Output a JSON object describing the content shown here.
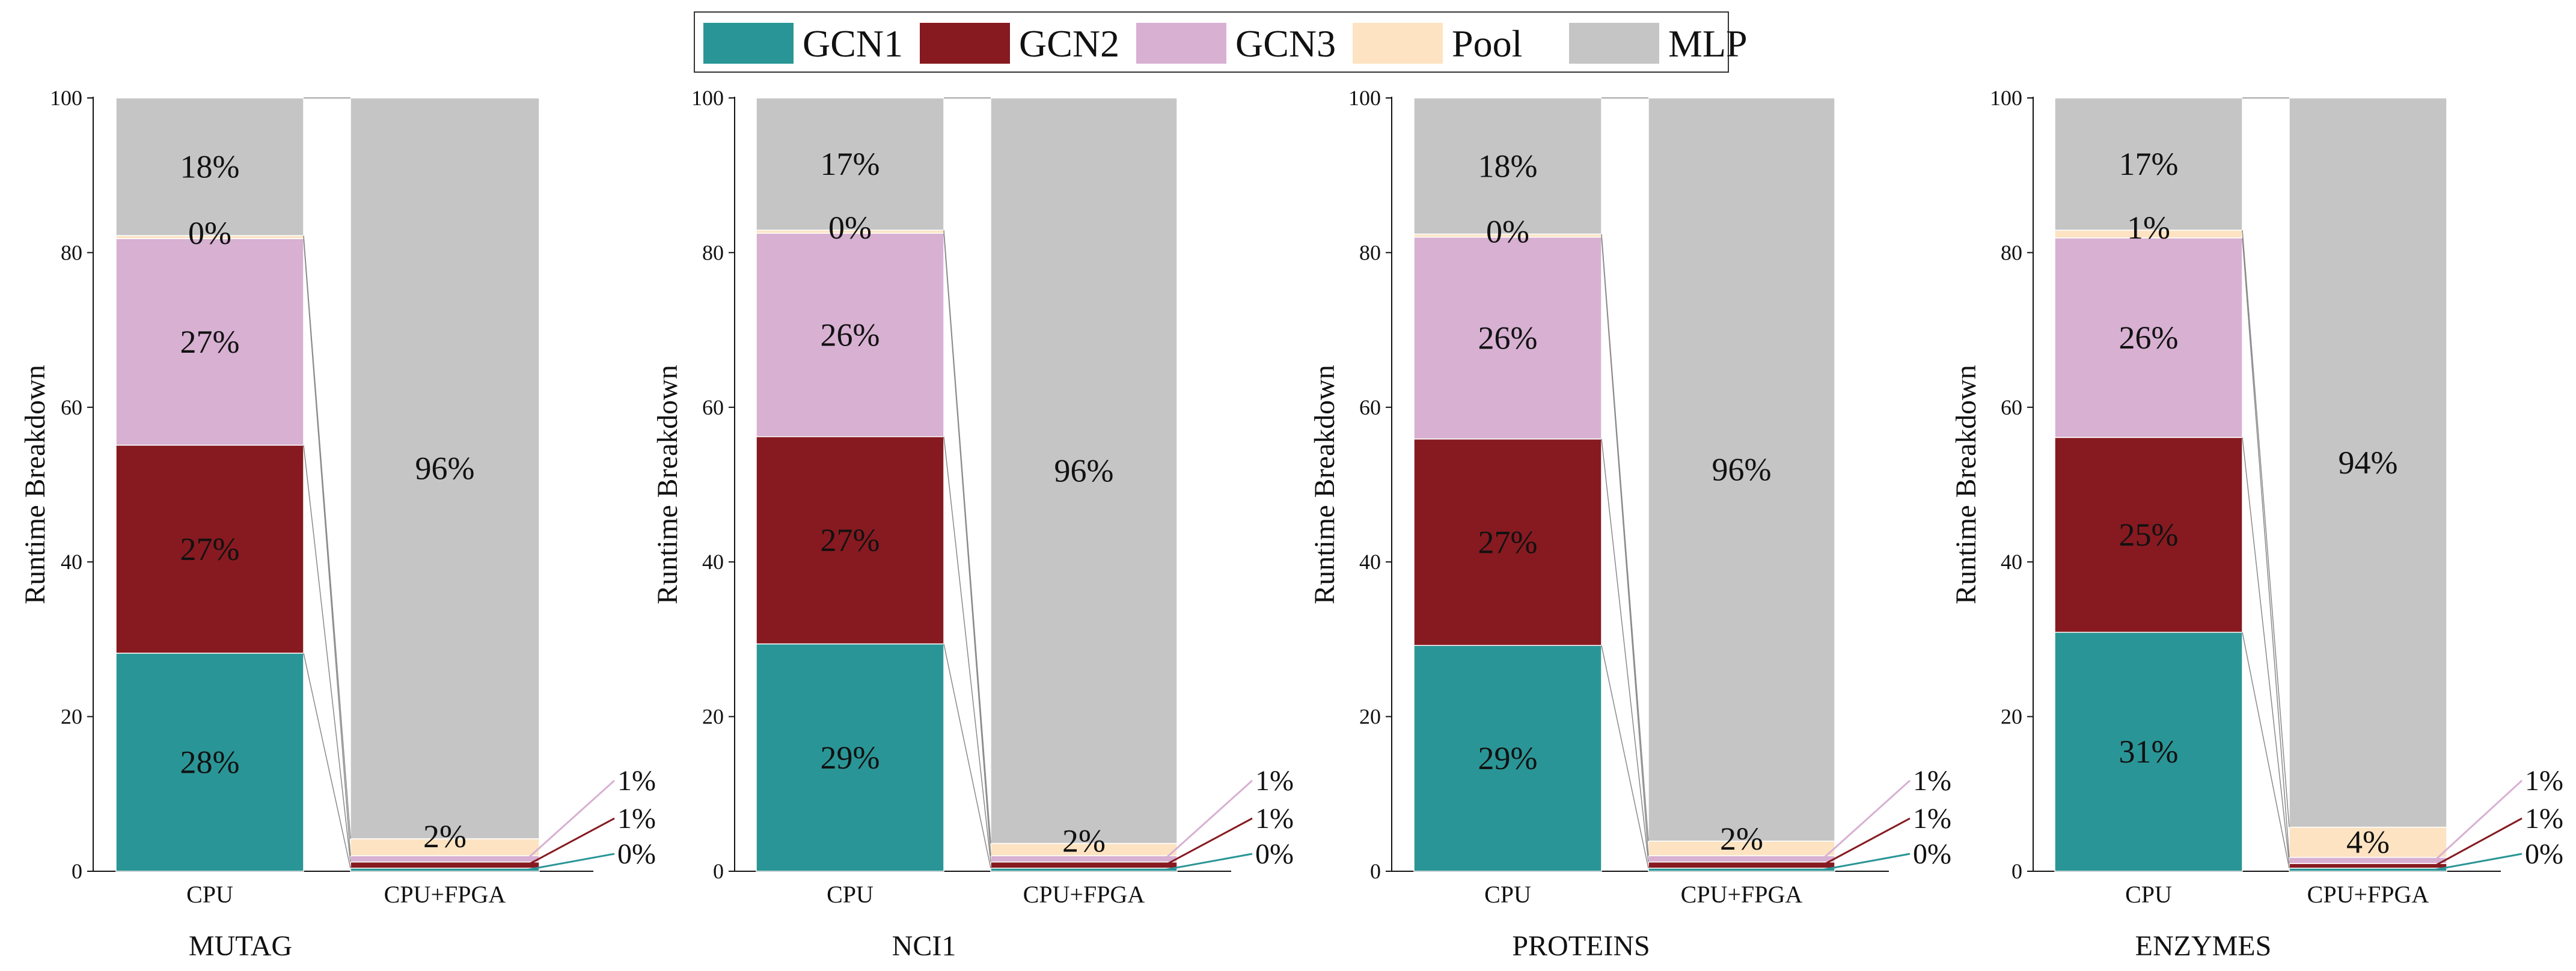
{
  "legend": {
    "placement": "top-center",
    "entries": [
      {
        "name": "GCN1",
        "color": "#2a9596"
      },
      {
        "name": "GCN2",
        "color": "#861a20"
      },
      {
        "name": "GCN3",
        "color": "#d7b0d2"
      },
      {
        "name": "Pool",
        "color": "#fde3c2"
      },
      {
        "name": "MLP",
        "color": "#c6c5c6"
      }
    ]
  },
  "chart_data": [
    {
      "type": "bar",
      "stacked": true,
      "title": "MUTAG",
      "ylabel": "Runtime Breakdown",
      "ylim": [
        0,
        100
      ],
      "yticks": [
        "0",
        "20",
        "40",
        "60",
        "80",
        "100"
      ],
      "categories": [
        "CPU",
        "CPU+FPGA"
      ],
      "series": [
        {
          "name": "GCN1",
          "values": [
            28.2,
            0.4
          ],
          "labels": [
            "28%",
            ""
          ]
        },
        {
          "name": "GCN2",
          "values": [
            26.9,
            0.8
          ],
          "labels": [
            "27%",
            ""
          ]
        },
        {
          "name": "GCN3",
          "values": [
            26.7,
            0.8
          ],
          "labels": [
            "27%",
            ""
          ]
        },
        {
          "name": "Pool",
          "values": [
            0.4,
            2.2
          ],
          "labels": [
            "0%",
            "2%"
          ]
        },
        {
          "name": "MLP",
          "values": [
            17.8,
            95.8
          ],
          "labels": [
            "18%",
            "96%"
          ]
        }
      ],
      "callouts": [
        "1%",
        "1%",
        "0%"
      ]
    },
    {
      "type": "bar",
      "stacked": true,
      "title": "NCI1",
      "ylabel": "Runtime Breakdown",
      "ylim": [
        0,
        100
      ],
      "yticks": [
        "0",
        "20",
        "40",
        "60",
        "80",
        "100"
      ],
      "categories": [
        "CPU",
        "CPU+FPGA"
      ],
      "series": [
        {
          "name": "GCN1",
          "values": [
            29.4,
            0.4
          ],
          "labels": [
            "29%",
            ""
          ]
        },
        {
          "name": "GCN2",
          "values": [
            26.8,
            0.8
          ],
          "labels": [
            "27%",
            ""
          ]
        },
        {
          "name": "GCN3",
          "values": [
            26.3,
            0.8
          ],
          "labels": [
            "26%",
            ""
          ]
        },
        {
          "name": "Pool",
          "values": [
            0.4,
            1.6
          ],
          "labels": [
            "0%",
            "2%"
          ]
        },
        {
          "name": "MLP",
          "values": [
            17.1,
            96.4
          ],
          "labels": [
            "17%",
            "96%"
          ]
        }
      ],
      "callouts": [
        "1%",
        "1%",
        "0%"
      ]
    },
    {
      "type": "bar",
      "stacked": true,
      "title": "PROTEINS",
      "ylabel": "Runtime Breakdown",
      "ylim": [
        0,
        100
      ],
      "yticks": [
        "0",
        "20",
        "40",
        "60",
        "80",
        "100"
      ],
      "categories": [
        "CPU",
        "CPU+FPGA"
      ],
      "series": [
        {
          "name": "GCN1",
          "values": [
            29.2,
            0.4
          ],
          "labels": [
            "29%",
            ""
          ]
        },
        {
          "name": "GCN2",
          "values": [
            26.7,
            0.8
          ],
          "labels": [
            "27%",
            ""
          ]
        },
        {
          "name": "GCN3",
          "values": [
            26.1,
            0.8
          ],
          "labels": [
            "26%",
            ""
          ]
        },
        {
          "name": "Pool",
          "values": [
            0.4,
            1.9
          ],
          "labels": [
            "0%",
            "2%"
          ]
        },
        {
          "name": "MLP",
          "values": [
            17.6,
            96.1
          ],
          "labels": [
            "18%",
            "96%"
          ]
        }
      ],
      "callouts": [
        "1%",
        "1%",
        "0%"
      ]
    },
    {
      "type": "bar",
      "stacked": true,
      "title": "ENZYMES",
      "ylabel": "Runtime Breakdown",
      "ylim": [
        0,
        100
      ],
      "yticks": [
        "0",
        "20",
        "40",
        "60",
        "80",
        "100"
      ],
      "categories": [
        "CPU",
        "CPU+FPGA"
      ],
      "series": [
        {
          "name": "GCN1",
          "values": [
            30.9,
            0.4
          ],
          "labels": [
            "31%",
            ""
          ]
        },
        {
          "name": "GCN2",
          "values": [
            25.2,
            0.6
          ],
          "labels": [
            "25%",
            ""
          ]
        },
        {
          "name": "GCN3",
          "values": [
            25.8,
            0.8
          ],
          "labels": [
            "26%",
            ""
          ]
        },
        {
          "name": "Pool",
          "values": [
            1.0,
            3.9
          ],
          "labels": [
            "1%",
            "4%"
          ]
        },
        {
          "name": "MLP",
          "values": [
            17.1,
            94.3
          ],
          "labels": [
            "17%",
            "94%"
          ]
        }
      ],
      "callouts": [
        "1%",
        "1%",
        "0%"
      ]
    }
  ]
}
